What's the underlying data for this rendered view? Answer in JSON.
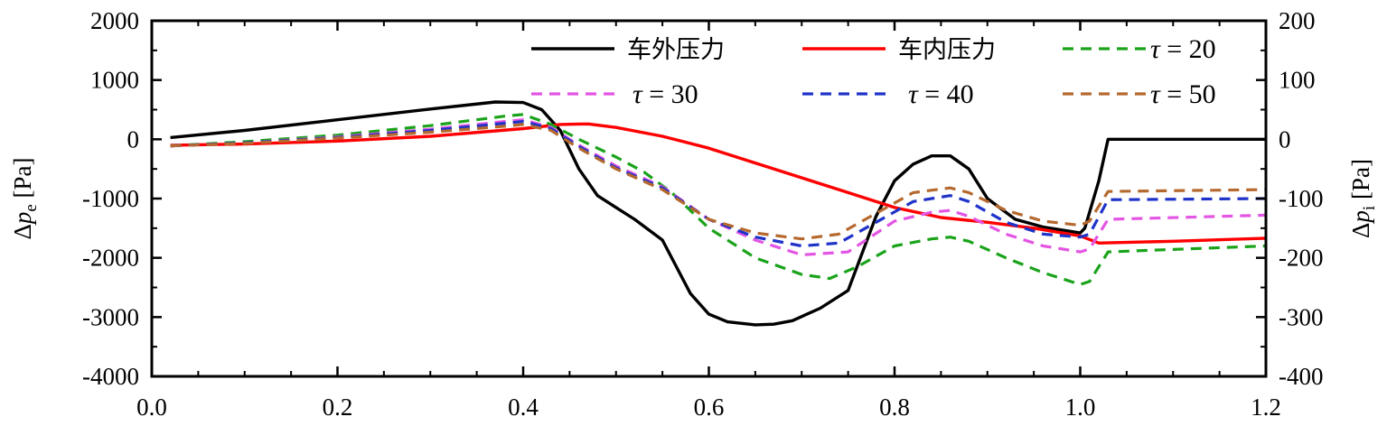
{
  "chart_data": {
    "type": "line",
    "title": "",
    "xlabel": "",
    "ylabel_left": {
      "prefix": "Δ",
      "var": "p",
      "sub": "e",
      "unit": " [Pa]"
    },
    "ylabel_right": {
      "prefix": "Δ",
      "var": "p",
      "sub": "i",
      "unit": " [Pa]"
    },
    "xlim": [
      0.0,
      1.2
    ],
    "ylim_left": [
      -4000,
      2000
    ],
    "ylim_right": [
      -400,
      200
    ],
    "x_ticks": [
      0.0,
      0.2,
      0.4,
      0.6,
      0.8,
      1.0,
      1.2
    ],
    "x_tick_labels": [
      "0.0",
      "0.2",
      "0.4",
      "0.6",
      "0.8",
      "1.0",
      "1.2"
    ],
    "y_left_ticks": [
      2000,
      1000,
      0,
      -1000,
      -2000,
      -3000,
      -4000
    ],
    "y_left_tick_labels": [
      "2000",
      "1000",
      "0",
      "-1000",
      "-2000",
      "-3000",
      "-4000"
    ],
    "y_right_ticks": [
      200,
      100,
      0,
      -100,
      -200,
      -300,
      -400
    ],
    "y_right_tick_labels": [
      "200",
      "100",
      "0",
      "-100",
      "-200",
      "-300",
      "-400"
    ],
    "grid": false,
    "legend_position": "top-right",
    "series": [
      {
        "name": "车外压力",
        "axis": "left",
        "color": "#000000",
        "dash": "solid",
        "label_style": "text",
        "x": [
          0.02,
          0.1,
          0.2,
          0.3,
          0.37,
          0.4,
          0.42,
          0.44,
          0.46,
          0.48,
          0.5,
          0.52,
          0.55,
          0.58,
          0.6,
          0.62,
          0.65,
          0.67,
          0.69,
          0.72,
          0.75,
          0.78,
          0.8,
          0.82,
          0.84,
          0.86,
          0.88,
          0.9,
          0.93,
          0.96,
          1.0,
          1.005,
          1.02,
          1.03,
          1.2
        ],
        "y": [
          30,
          150,
          330,
          510,
          630,
          620,
          500,
          150,
          -500,
          -950,
          -1150,
          -1350,
          -1700,
          -2600,
          -2950,
          -3080,
          -3130,
          -3120,
          -3060,
          -2850,
          -2550,
          -1300,
          -700,
          -420,
          -280,
          -280,
          -500,
          -1000,
          -1350,
          -1480,
          -1580,
          -1500,
          -700,
          0,
          0
        ]
      },
      {
        "name": "车内压力",
        "axis": "right",
        "color": "#ff0000",
        "dash": "solid",
        "label_style": "text",
        "x": [
          0.02,
          0.1,
          0.2,
          0.3,
          0.4,
          0.44,
          0.47,
          0.5,
          0.55,
          0.6,
          0.65,
          0.7,
          0.75,
          0.8,
          0.85,
          0.9,
          0.95,
          1.0,
          1.02,
          1.1,
          1.2
        ],
        "y": [
          -10,
          -8,
          -3,
          5,
          18,
          25,
          26,
          20,
          5,
          -15,
          -40,
          -65,
          -90,
          -115,
          -132,
          -140,
          -150,
          -163,
          -175,
          -172,
          -167
        ]
      },
      {
        "name": "20",
        "prefix": "τ = ",
        "axis": "left",
        "color": "#1aa31a",
        "dash": "dashed",
        "label_style": "tau",
        "x": [
          0.02,
          0.1,
          0.2,
          0.3,
          0.38,
          0.4,
          0.43,
          0.46,
          0.5,
          0.53,
          0.56,
          0.6,
          0.65,
          0.7,
          0.73,
          0.76,
          0.8,
          0.84,
          0.86,
          0.88,
          0.92,
          0.96,
          1.0,
          1.01,
          1.03,
          1.2
        ],
        "y": [
          -110,
          -40,
          70,
          230,
          390,
          420,
          250,
          0,
          -300,
          -550,
          -900,
          -1500,
          -2000,
          -2280,
          -2350,
          -2150,
          -1800,
          -1680,
          -1650,
          -1720,
          -2000,
          -2250,
          -2450,
          -2400,
          -1900,
          -1800
        ]
      },
      {
        "name": "30",
        "prefix": "τ = ",
        "axis": "left",
        "color": "#e355e3",
        "dash": "dashed",
        "label_style": "tau",
        "x": [
          0.02,
          0.1,
          0.2,
          0.3,
          0.38,
          0.4,
          0.43,
          0.46,
          0.5,
          0.55,
          0.6,
          0.65,
          0.7,
          0.75,
          0.8,
          0.84,
          0.86,
          0.88,
          0.92,
          0.96,
          1.0,
          1.01,
          1.03,
          1.2
        ],
        "y": [
          -110,
          -60,
          40,
          170,
          300,
          330,
          200,
          -100,
          -450,
          -800,
          -1350,
          -1700,
          -1950,
          -1900,
          -1380,
          -1230,
          -1200,
          -1300,
          -1600,
          -1800,
          -1900,
          -1850,
          -1350,
          -1280
        ]
      },
      {
        "name": "40",
        "prefix": "τ = ",
        "axis": "left",
        "color": "#1f33c9",
        "dash": "dashed",
        "label_style": "tau",
        "x": [
          0.02,
          0.1,
          0.2,
          0.3,
          0.38,
          0.4,
          0.43,
          0.46,
          0.5,
          0.55,
          0.6,
          0.65,
          0.7,
          0.74,
          0.78,
          0.82,
          0.86,
          0.88,
          0.92,
          0.96,
          1.0,
          1.01,
          1.03,
          1.2
        ],
        "y": [
          -110,
          -60,
          30,
          150,
          270,
          300,
          180,
          -120,
          -480,
          -820,
          -1350,
          -1650,
          -1800,
          -1750,
          -1400,
          -1050,
          -950,
          -1050,
          -1400,
          -1600,
          -1650,
          -1600,
          -1020,
          -1000
        ]
      },
      {
        "name": "50",
        "prefix": "τ = ",
        "axis": "left",
        "color": "#b5692f",
        "dash": "dashed",
        "label_style": "tau",
        "x": [
          0.02,
          0.1,
          0.2,
          0.3,
          0.38,
          0.4,
          0.43,
          0.46,
          0.5,
          0.55,
          0.6,
          0.65,
          0.7,
          0.74,
          0.78,
          0.82,
          0.86,
          0.88,
          0.92,
          0.96,
          1.0,
          1.01,
          1.03,
          1.2
        ],
        "y": [
          -110,
          -70,
          20,
          120,
          220,
          250,
          150,
          -150,
          -500,
          -850,
          -1350,
          -1580,
          -1680,
          -1600,
          -1250,
          -900,
          -820,
          -900,
          -1200,
          -1380,
          -1450,
          -1380,
          -880,
          -850
        ]
      }
    ]
  }
}
